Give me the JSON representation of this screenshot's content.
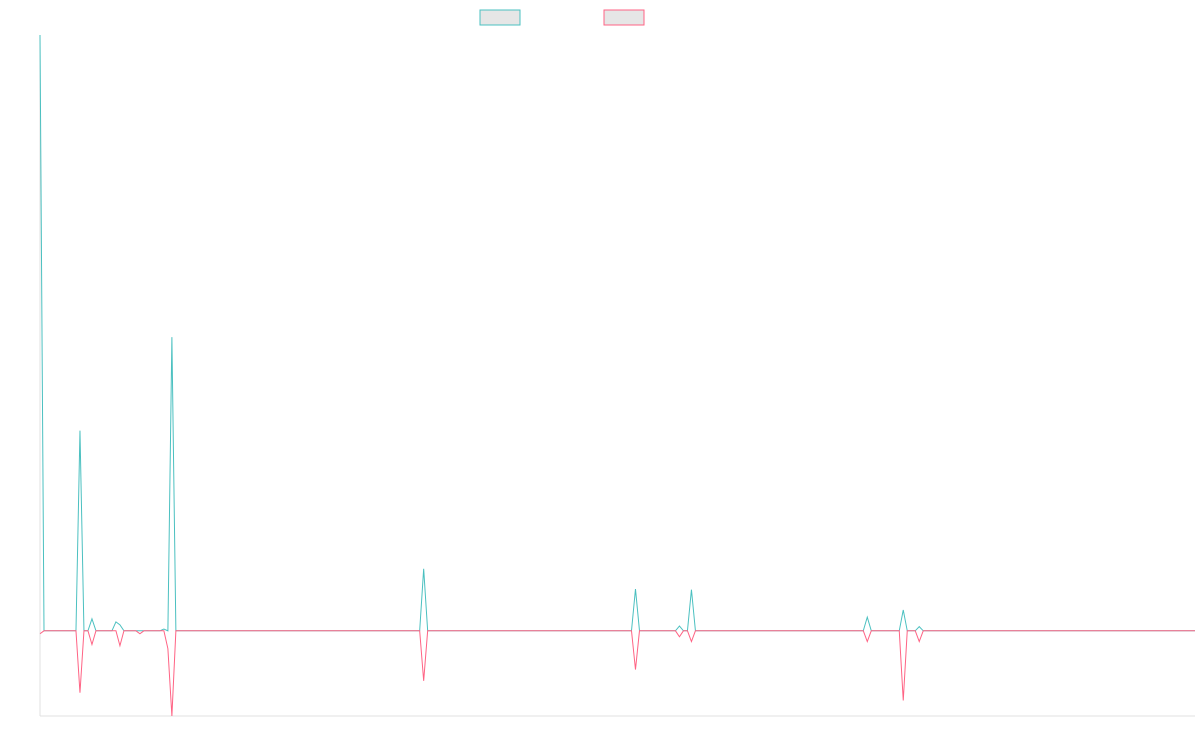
{
  "chart_data": {
    "type": "line",
    "x": [
      0,
      1,
      9,
      10,
      11,
      12,
      13,
      14,
      18,
      19,
      20,
      21,
      24,
      25,
      26,
      30,
      31,
      32,
      33,
      34,
      95,
      96,
      97,
      148,
      149,
      150,
      159,
      160,
      161,
      162,
      163,
      164,
      206,
      207,
      208,
      215,
      216,
      217,
      219,
      220,
      221,
      289
    ],
    "series": [
      {
        "color": "#4bc0c0",
        "values": [
          10,
          0,
          0,
          3.36,
          0,
          0,
          0.2,
          0,
          0,
          0.15,
          0.1,
          0,
          0,
          0,
          0,
          0,
          0.03,
          0,
          4.93,
          0,
          0,
          1.04,
          0,
          0,
          0.7,
          0,
          0,
          0.08,
          0,
          0,
          0.69,
          0,
          0,
          0.23,
          0,
          0,
          0.35,
          0,
          0,
          0.07,
          0,
          0
        ]
      },
      {
        "color": "#ff6384",
        "values": [
          -0.05,
          0,
          0,
          -1.04,
          0,
          0,
          -0.23,
          0,
          0,
          0,
          -0.25,
          0,
          0,
          -0.05,
          0,
          0,
          0,
          -0.3,
          -1.43,
          0,
          0,
          -0.84,
          0,
          0,
          -0.65,
          0,
          0,
          -0.1,
          0,
          0,
          -0.18,
          0,
          0,
          -0.18,
          0,
          0,
          -1.17,
          0,
          0,
          -0.18,
          0,
          0
        ]
      }
    ],
    "xlim": [
      0,
      289
    ],
    "ylim": [
      -1.43,
      10
    ]
  }
}
